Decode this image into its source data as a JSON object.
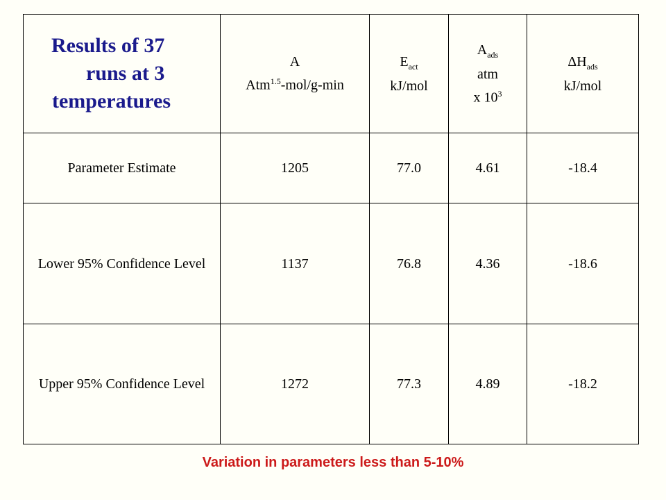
{
  "title": {
    "line1": "Results of 37",
    "line2": "runs at 3",
    "line3": "temperatures"
  },
  "columns": [
    {
      "line1": "A",
      "line2_main": "Atm",
      "line2_sup": "1.5",
      "line2_rest": "-mol/g-min"
    },
    {
      "line1_main": "E",
      "line1_sub": "act",
      "line2": "kJ/mol"
    },
    {
      "line1_main": "A",
      "line1_sub": "ads",
      "line2": "atm",
      "line3_main": "x 10",
      "line3_sup": "3"
    },
    {
      "line1_main": "ΔH",
      "line1_sub": "ads",
      "line2": "kJ/mol"
    }
  ],
  "rows": [
    {
      "label": "Parameter Estimate",
      "values": [
        "1205",
        "77.0",
        "4.61",
        "-18.4"
      ]
    },
    {
      "label": "Lower 95% Confidence Level",
      "values": [
        "1137",
        "76.8",
        "4.36",
        "-18.6"
      ]
    },
    {
      "label": "Upper 95% Confidence Level",
      "values": [
        "1272",
        "77.3",
        "4.89",
        "-18.2"
      ]
    }
  ],
  "footer": "Variation in parameters less than 5-10%",
  "colors": {
    "title": "#1a1a8c",
    "footer": "#cc1a1a",
    "background": "#fffff8"
  }
}
